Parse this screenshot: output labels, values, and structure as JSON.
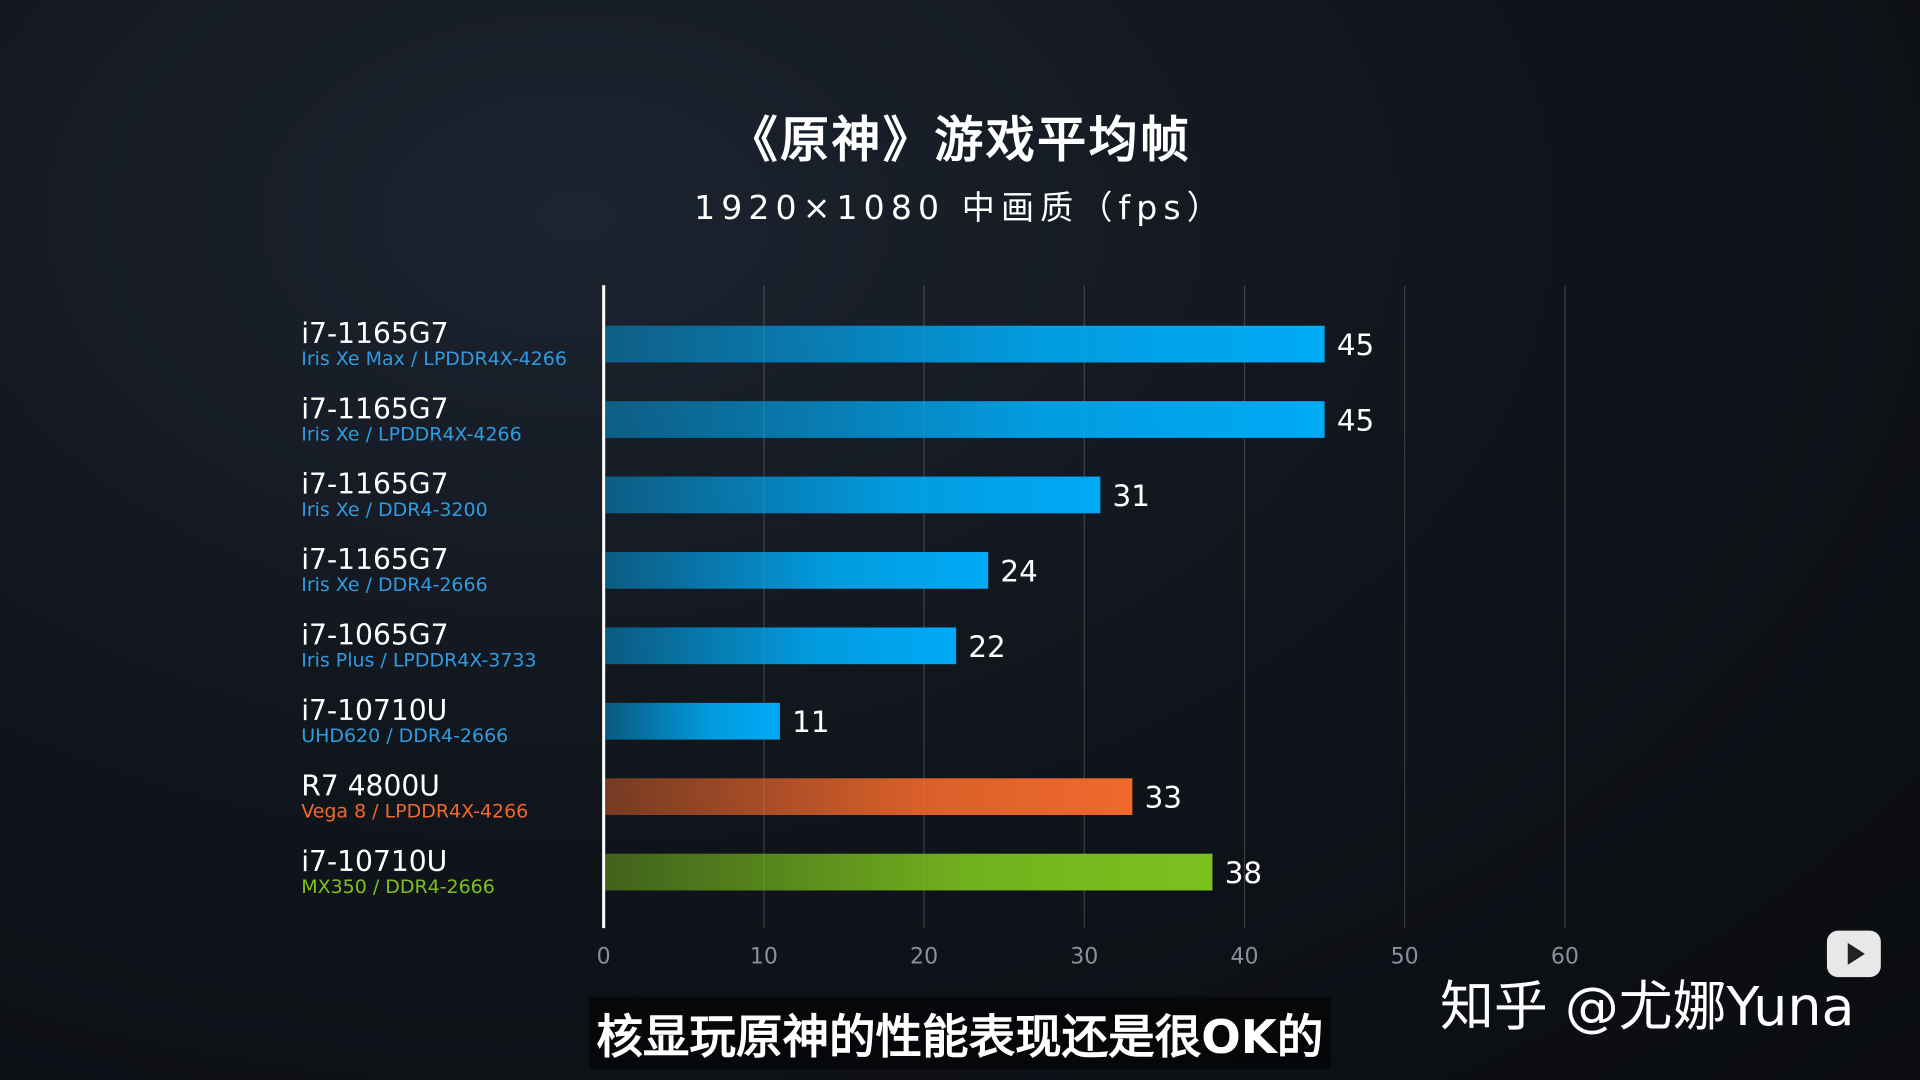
{
  "chart_data": {
    "type": "bar",
    "orientation": "horizontal",
    "title": "《原神》游戏平均帧",
    "subtitle": "1920×1080 中画质（fps）",
    "xlim": [
      0,
      60
    ],
    "xticks": [
      0,
      10,
      20,
      30,
      40,
      50,
      60
    ],
    "grid": true,
    "categories": [
      {
        "name": "i7-1165G7",
        "detail": "Iris Xe Max / LPDDR4X-4266",
        "color": "#00aaf5"
      },
      {
        "name": "i7-1165G7",
        "detail": "Iris Xe / LPDDR4X-4266",
        "color": "#00aaf5"
      },
      {
        "name": "i7-1165G7",
        "detail": "Iris Xe / DDR4-3200",
        "color": "#00aaf5"
      },
      {
        "name": "i7-1165G7",
        "detail": "Iris Xe / DDR4-2666",
        "color": "#00aaf5"
      },
      {
        "name": "i7-1065G7",
        "detail": "Iris Plus / LPDDR4X-3733",
        "color": "#00aaf5"
      },
      {
        "name": "i7-10710U",
        "detail": "UHD620 / DDR4-2666",
        "color": "#00aaf5"
      },
      {
        "name": "R7 4800U",
        "detail": "Vega 8 / LPDDR4X-4266",
        "color": "#f0682c"
      },
      {
        "name": "i7-10710U",
        "detail": "MX350 / DDR4-2666",
        "color": "#7cc21e"
      }
    ],
    "values": [
      45,
      45,
      31,
      24,
      22,
      11,
      33,
      38
    ]
  },
  "caption": "核显玩原神的性能表现还是很OK的",
  "watermark": "知乎 @尤娜Yuna",
  "icons": {
    "video_logo": "bilibili-tv-icon"
  }
}
